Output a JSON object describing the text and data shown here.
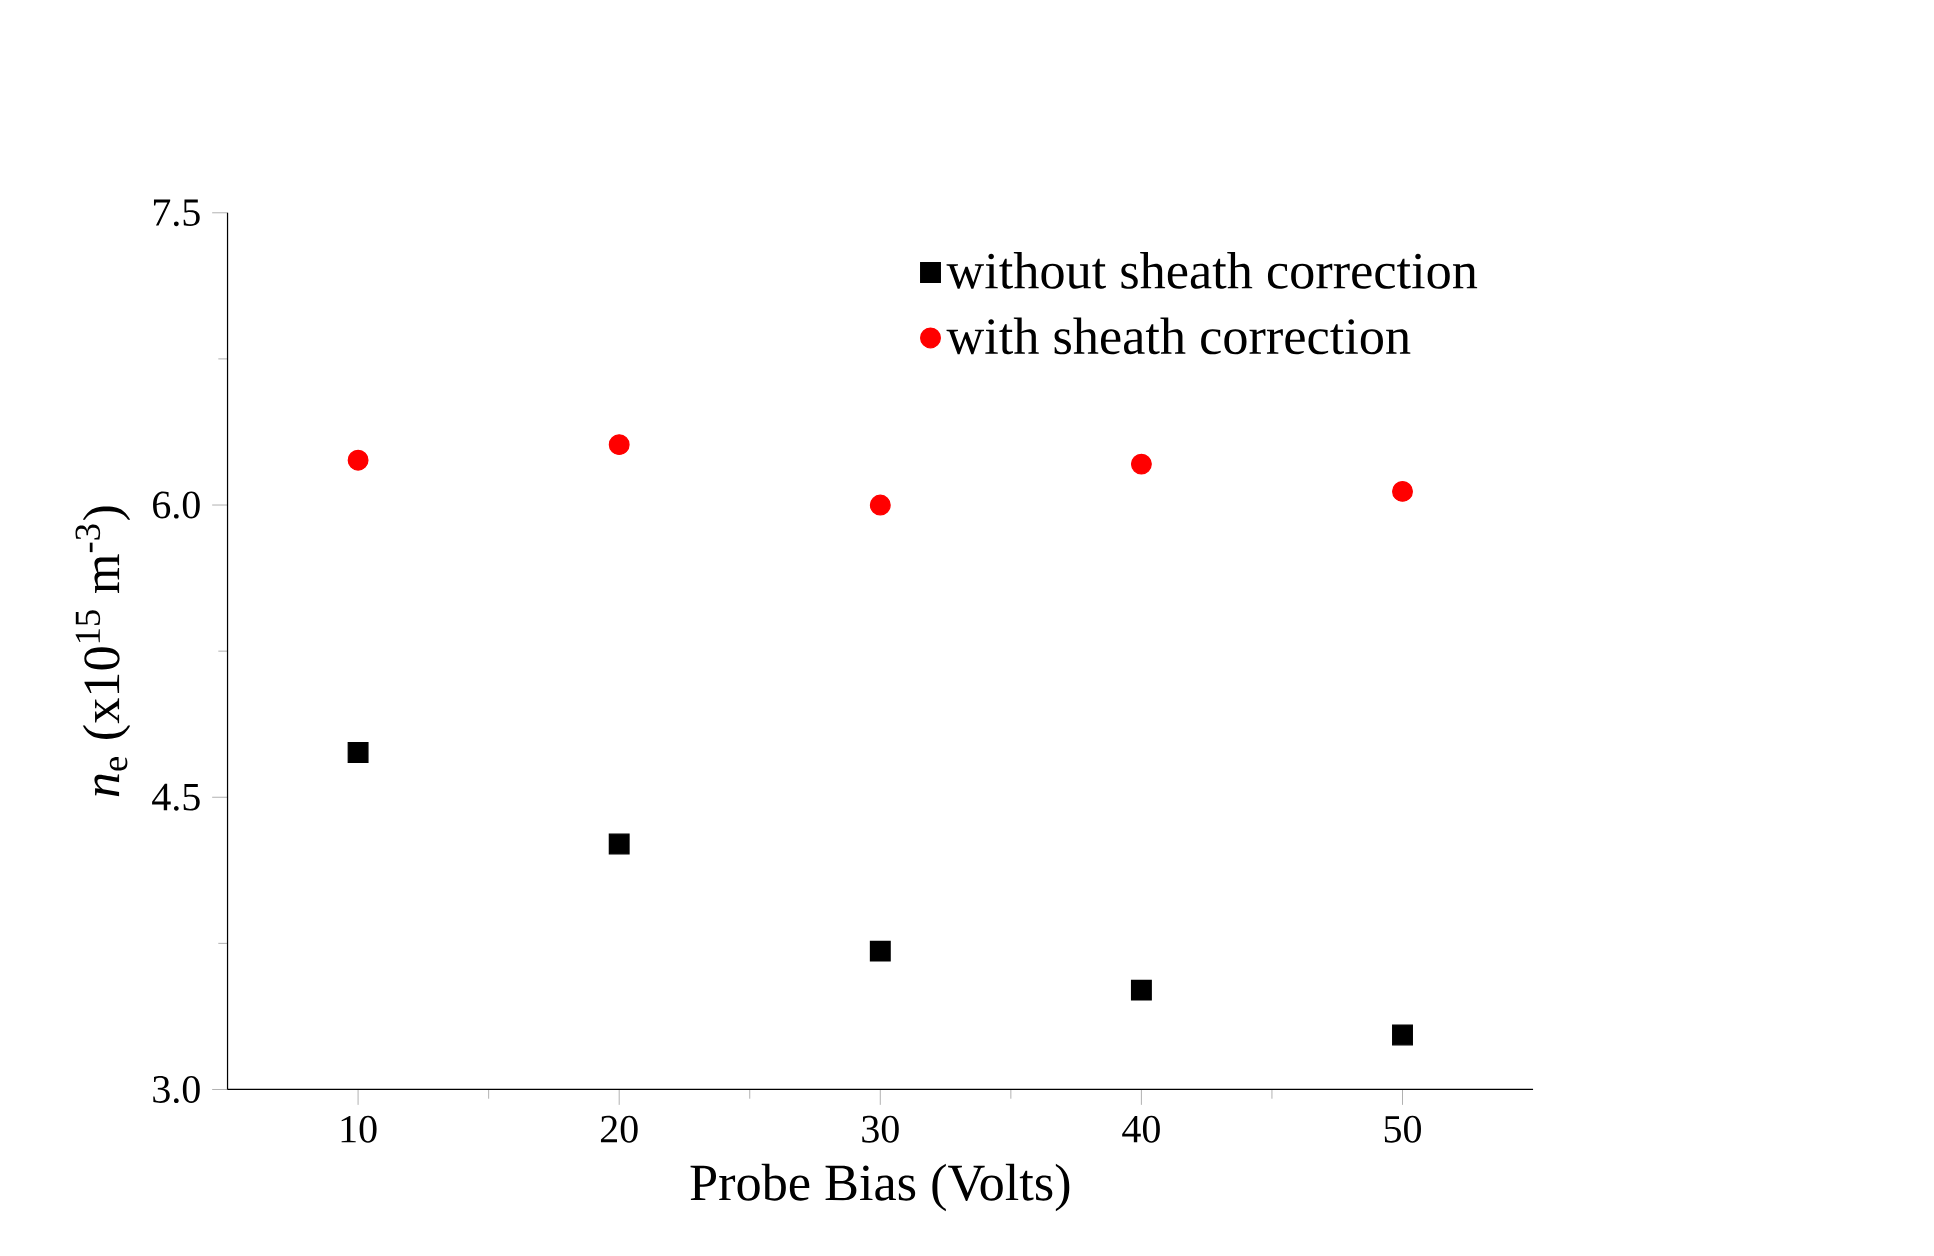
{
  "chart_data": {
    "type": "scatter",
    "xlabel": "Probe Bias (Volts)",
    "ylabel": "*n*$_{e}$ (x10$^{15}$ m$^{-3}$)",
    "x": [
      10,
      20,
      30,
      40,
      50
    ],
    "xlim": [
      5,
      55
    ],
    "xticks": [
      10,
      20,
      30,
      40,
      50
    ],
    "ylim": [
      3,
      7.5
    ],
    "yticks": [
      {
        "value": 3,
        "label": "3.0"
      },
      {
        "value": 4.5,
        "label": "4.5"
      },
      {
        "value": 6,
        "label": "6.0"
      },
      {
        "value": 7.5,
        "label": "7.5"
      }
    ],
    "legend": "top right",
    "grid": false,
    "series": [
      {
        "name": "without sheath correction",
        "color": "#000000",
        "marker": "square",
        "values": [
          4.73,
          4.26,
          3.71,
          3.51,
          3.28
        ]
      },
      {
        "name": "with sheath correction",
        "color": "#ff0000",
        "marker": "circle",
        "values": [
          6.23,
          6.31,
          6.0,
          6.21,
          6.07
        ]
      }
    ]
  }
}
